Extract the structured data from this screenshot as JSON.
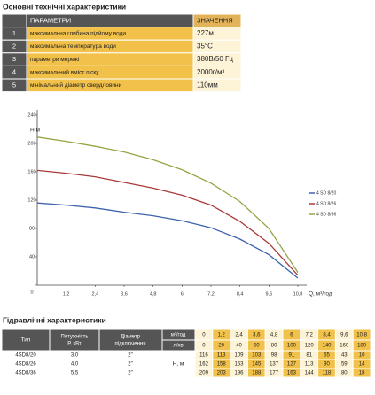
{
  "header": {
    "title": "Основні технічні характеристики"
  },
  "params": {
    "columns": [
      "ПАРАМЕТРИ",
      "ЗНАЧЕННЯ"
    ],
    "rows": [
      [
        "1",
        "максимальна глибина підйому води",
        "227м"
      ],
      [
        "2",
        "максимальна температура води",
        "35°C"
      ],
      [
        "3",
        "параметри мережі",
        "380В/50 Гц"
      ],
      [
        "4",
        "максимальний вміст піску",
        "2000г/м³"
      ],
      [
        "5",
        "мінімальний діаметр свердловини",
        "110мм"
      ]
    ]
  },
  "chart_data": {
    "type": "line",
    "y_label": "H,м",
    "x_label": "Q, м³/год",
    "x": [
      0,
      1.2,
      2.4,
      3.6,
      4.8,
      6,
      7.2,
      8.4,
      9.6,
      10.8
    ],
    "xlim": [
      0,
      10.8
    ],
    "ylim": [
      0,
      240
    ],
    "xticks": [
      {
        "value": 1.2,
        "label": "1,2"
      },
      {
        "value": 2.4,
        "label": "2,4"
      },
      {
        "value": 3.6,
        "label": "3,6"
      },
      {
        "value": 4.8,
        "label": "4,8"
      },
      6,
      {
        "value": 7.2,
        "label": "7,2"
      },
      {
        "value": 8.4,
        "label": "8,4"
      },
      {
        "value": 9.6,
        "label": "9,6"
      },
      {
        "value": 10.8,
        "label": "10,8"
      }
    ],
    "yticks": [
      0,
      40,
      80,
      120,
      160,
      200,
      240
    ],
    "series": [
      {
        "name": "4 SD 8/20",
        "color": "#3d63ad",
        "values": [
          116,
          113,
          109,
          103,
          98,
          91,
          81,
          65,
          43,
          10
        ]
      },
      {
        "name": "4 SD 8/26",
        "color": "#a83a3a",
        "values": [
          162,
          158,
          153,
          145,
          137,
          127,
          113,
          90,
          59,
          14
        ]
      },
      {
        "name": "4 SD 8/36",
        "color": "#93a646",
        "values": [
          209,
          203,
          196,
          188,
          177,
          163,
          144,
          118,
          80,
          18
        ]
      }
    ]
  },
  "hydraulics": {
    "title": "Гідравлічні характеристики",
    "type_header": "Тип",
    "power_header": [
      "Потужність",
      "Р, кВт"
    ],
    "diameter_header": [
      "Діаметр",
      "підключення"
    ],
    "unit_q": "м³/год",
    "unit_l": "л/хв",
    "unit_h": "Н, м",
    "q_m3h": [
      "0",
      "1,2",
      "2,4",
      "3,6",
      "4,8",
      "6",
      "7,2",
      "8,4",
      "9,6",
      "10,8"
    ],
    "q_lmin": [
      "0",
      "20",
      "40",
      "60",
      "80",
      "100",
      "120",
      "140",
      "160",
      "180"
    ],
    "rows": [
      {
        "type": "4SD8/20",
        "power": "3,0",
        "diameter": "2\"",
        "values": [
          116,
          113,
          109,
          103,
          98,
          91,
          81,
          65,
          43,
          10
        ]
      },
      {
        "type": "4SD8/26",
        "power": "4,0",
        "diameter": "2\"",
        "values": [
          162,
          158,
          153,
          145,
          137,
          127,
          113,
          90,
          59,
          14
        ]
      },
      {
        "type": "4SD8/36",
        "power": "5,5",
        "diameter": "2\"",
        "values": [
          209,
          203,
          196,
          188,
          177,
          163,
          144,
          118,
          80,
          18
        ]
      }
    ]
  }
}
